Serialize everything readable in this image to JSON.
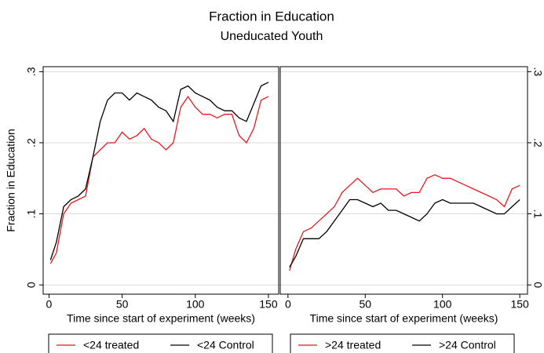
{
  "title": "Fraction in Education",
  "subtitle": "Uneducated Youth",
  "chart_data": [
    {
      "type": "line",
      "ylabel": "Fraction in Education",
      "xlabel": "Time since start of experiment (weeks)",
      "yaxis_side": "left",
      "grid": true,
      "xlim": [
        -4,
        157
      ],
      "xticks": [
        0,
        50,
        100,
        150
      ],
      "ylim": [
        -0.013,
        0.307
      ],
      "yticks": [
        0,
        {
          "value": 0.1,
          "label": ".1"
        },
        {
          "value": 0.2,
          "label": ".2"
        },
        {
          "value": 0.3,
          "label": ".3"
        }
      ],
      "x": [
        1,
        5,
        10,
        15,
        20,
        25,
        30,
        35,
        40,
        45,
        50,
        55,
        60,
        65,
        70,
        75,
        80,
        85,
        90,
        95,
        100,
        105,
        110,
        115,
        120,
        125,
        130,
        135,
        140,
        145,
        150
      ],
      "series": [
        {
          "name": "<24 treated",
          "color": "#e8191e",
          "values": [
            0.03,
            0.045,
            0.1,
            0.115,
            0.12,
            0.125,
            0.18,
            0.19,
            0.2,
            0.2,
            0.215,
            0.205,
            0.21,
            0.22,
            0.205,
            0.2,
            0.19,
            0.2,
            0.25,
            0.265,
            0.25,
            0.24,
            0.24,
            0.235,
            0.24,
            0.24,
            0.21,
            0.2,
            0.22,
            0.26,
            0.265
          ]
        },
        {
          "name": "<24 Control",
          "color": "#000000",
          "values": [
            0.035,
            0.06,
            0.11,
            0.12,
            0.125,
            0.135,
            0.18,
            0.23,
            0.26,
            0.27,
            0.27,
            0.26,
            0.27,
            0.265,
            0.26,
            0.25,
            0.245,
            0.23,
            0.275,
            0.28,
            0.27,
            0.265,
            0.26,
            0.25,
            0.245,
            0.245,
            0.235,
            0.23,
            0.255,
            0.28,
            0.285
          ]
        }
      ]
    },
    {
      "type": "line",
      "xlabel": "Time since start of experiment (weeks)",
      "yaxis_side": "right",
      "grid": true,
      "xlim": [
        -5,
        155
      ],
      "xticks": [
        0,
        50,
        100,
        150
      ],
      "ylim": [
        -0.013,
        0.307
      ],
      "yticks": [
        0,
        {
          "value": 0.1,
          "label": ".1"
        },
        {
          "value": 0.2,
          "label": ".2"
        },
        {
          "value": 0.3,
          "label": ".3"
        }
      ],
      "x": [
        1,
        5,
        10,
        15,
        20,
        25,
        30,
        35,
        40,
        45,
        50,
        55,
        60,
        65,
        70,
        75,
        80,
        85,
        90,
        95,
        100,
        105,
        110,
        115,
        120,
        125,
        130,
        135,
        140,
        145,
        150
      ],
      "series": [
        {
          "name": ">24 treated",
          "color": "#e8191e",
          "values": [
            0.02,
            0.05,
            0.075,
            0.08,
            0.09,
            0.1,
            0.11,
            0.13,
            0.14,
            0.15,
            0.14,
            0.13,
            0.135,
            0.135,
            0.135,
            0.125,
            0.13,
            0.13,
            0.15,
            0.155,
            0.15,
            0.15,
            0.145,
            0.14,
            0.135,
            0.13,
            0.125,
            0.12,
            0.11,
            0.135,
            0.14
          ]
        },
        {
          "name": ">24 Control",
          "color": "#000000",
          "values": [
            0.025,
            0.04,
            0.065,
            0.065,
            0.065,
            0.075,
            0.09,
            0.105,
            0.12,
            0.12,
            0.115,
            0.11,
            0.115,
            0.105,
            0.105,
            0.1,
            0.095,
            0.09,
            0.1,
            0.115,
            0.12,
            0.115,
            0.115,
            0.115,
            0.115,
            0.11,
            0.105,
            0.1,
            0.1,
            0.11,
            0.12
          ]
        }
      ]
    }
  ]
}
